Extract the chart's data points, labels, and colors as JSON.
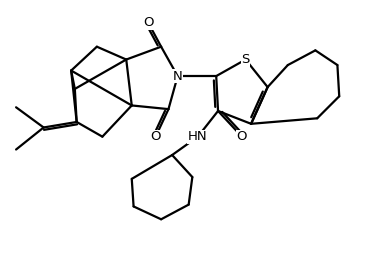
{
  "background_color": "#ffffff",
  "line_color": "#000000",
  "line_width": 1.6,
  "font_size": 9.5,
  "fig_width": 3.7,
  "fig_height": 2.77,
  "dpi": 100,
  "xlim": [
    0,
    10
  ],
  "ylim": [
    0,
    7.4
  ]
}
